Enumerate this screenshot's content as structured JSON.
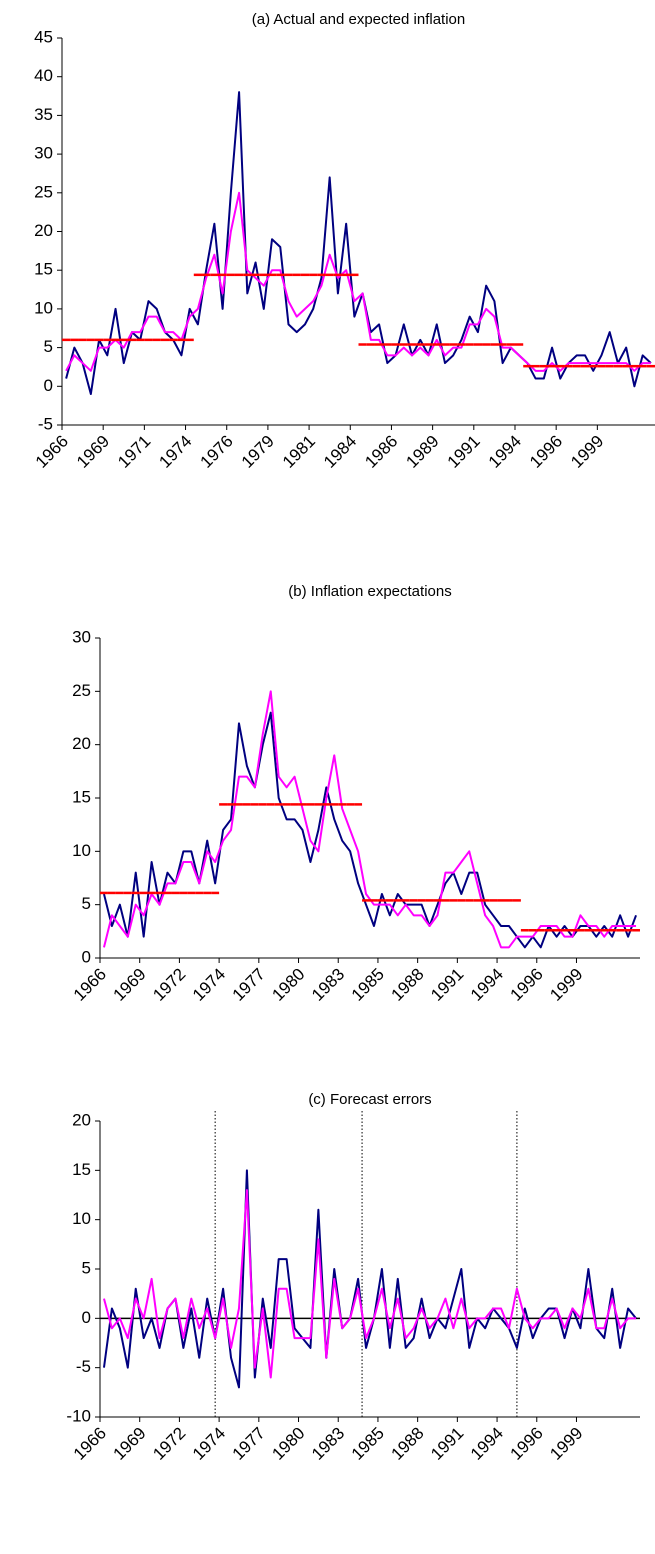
{
  "chart_data": [
    {
      "type": "line",
      "title": "(a) Actual and expected inflation",
      "categories": [
        "1966",
        null,
        null,
        null,
        null,
        "1969",
        null,
        null,
        null,
        null,
        "1971",
        null,
        null,
        null,
        null,
        "1974",
        null,
        null,
        null,
        null,
        "1976",
        null,
        null,
        null,
        null,
        "1979",
        null,
        null,
        null,
        null,
        "1981",
        null,
        null,
        null,
        null,
        "1984",
        null,
        null,
        null,
        null,
        "1986",
        null,
        null,
        null,
        null,
        "1989",
        null,
        null,
        null,
        null,
        "1991",
        null,
        null,
        null,
        null,
        "1994",
        null,
        null,
        null,
        null,
        "1996",
        null,
        null,
        null,
        null,
        "1999",
        null,
        null,
        null,
        null,
        null,
        null
      ],
      "ylim": [
        -5,
        45
      ],
      "yticks": [
        -5,
        0,
        5,
        10,
        15,
        20,
        25,
        30,
        35,
        40,
        45
      ],
      "series": [
        {
          "color": "#000080",
          "values": [
            1,
            5,
            3,
            -1,
            6,
            4,
            10,
            3,
            7,
            6,
            11,
            10,
            7,
            6,
            4,
            10,
            8,
            15,
            21,
            10,
            25,
            38,
            12,
            16,
            10,
            19,
            18,
            8,
            7,
            8,
            10,
            14,
            27,
            12,
            21,
            9,
            12,
            7,
            8,
            3,
            4,
            8,
            4,
            6,
            4,
            8,
            3,
            4,
            6,
            9,
            7,
            13,
            11,
            3,
            5,
            4,
            3,
            1,
            1,
            5,
            1,
            3,
            4,
            4,
            2,
            4,
            7,
            3,
            5,
            0,
            4,
            3
          ]
        },
        {
          "color": "#ff00ff",
          "values": [
            2,
            4,
            3,
            2,
            5,
            5,
            6,
            5,
            7,
            7,
            9,
            9,
            7,
            7,
            6,
            9,
            10,
            14,
            17,
            12,
            20,
            25,
            15,
            14,
            13,
            15,
            15,
            11,
            9,
            10,
            11,
            13,
            17,
            14,
            15,
            11,
            12,
            6,
            6,
            4,
            4,
            5,
            4,
            5,
            4,
            6,
            4,
            5,
            5,
            8,
            8,
            10,
            9,
            5,
            5,
            4,
            3,
            2,
            2,
            3,
            2,
            3,
            3,
            3,
            3,
            3,
            3,
            3,
            3,
            2,
            3,
            3
          ]
        },
        {
          "color": "#ff0000",
          "style": "step",
          "values": [
            6,
            6,
            6,
            6,
            6,
            6,
            6,
            6,
            6,
            6,
            6,
            6,
            6,
            6,
            6,
            6,
            14.4,
            14.4,
            14.4,
            14.4,
            14.4,
            14.4,
            14.4,
            14.4,
            14.4,
            14.4,
            14.4,
            14.4,
            14.4,
            14.4,
            14.4,
            14.4,
            14.4,
            14.4,
            14.4,
            14.4,
            5.4,
            5.4,
            5.4,
            5.4,
            5.4,
            5.4,
            5.4,
            5.4,
            5.4,
            5.4,
            5.4,
            5.4,
            5.4,
            5.4,
            5.4,
            5.4,
            5.4,
            5.4,
            5.4,
            5.4,
            2.6,
            2.6,
            2.6,
            2.6,
            2.6,
            2.6,
            2.6,
            2.6,
            2.6,
            2.6,
            2.6,
            2.6,
            2.6,
            2.6,
            2.6,
            2.6
          ]
        }
      ]
    },
    {
      "type": "line",
      "title": "(b) Inflation expectations",
      "categories": [
        "1966",
        null,
        null,
        null,
        null,
        "1969",
        null,
        null,
        null,
        null,
        "1972",
        null,
        null,
        null,
        null,
        "1974",
        null,
        null,
        null,
        null,
        "1977",
        null,
        null,
        null,
        null,
        "1980",
        null,
        null,
        null,
        null,
        "1983",
        null,
        null,
        null,
        null,
        "1985",
        null,
        null,
        null,
        null,
        "1988",
        null,
        null,
        null,
        null,
        "1991",
        null,
        null,
        null,
        null,
        "1994",
        null,
        null,
        null,
        null,
        "1996",
        null,
        null,
        null,
        null,
        "1999",
        null,
        null,
        null,
        null,
        null,
        null,
        null
      ],
      "ylim": [
        0,
        30
      ],
      "yticks": [
        0,
        5,
        10,
        15,
        20,
        25,
        30
      ],
      "series": [
        {
          "color": "#000080",
          "values": [
            6,
            3,
            5,
            2,
            8,
            2,
            9,
            5,
            8,
            7,
            10,
            10,
            7,
            11,
            7,
            12,
            13,
            22,
            18,
            16,
            20,
            23,
            15,
            13,
            13,
            12,
            9,
            12,
            16,
            13,
            11,
            10,
            7,
            5,
            3,
            6,
            4,
            6,
            5,
            5,
            5,
            3,
            5,
            7,
            8,
            6,
            8,
            8,
            5,
            4,
            3,
            3,
            2,
            1,
            2,
            1,
            3,
            2,
            3,
            2,
            3,
            3,
            2,
            3,
            2,
            4,
            2,
            4
          ]
        },
        {
          "color": "#ff00ff",
          "values": [
            1,
            4,
            3,
            2,
            5,
            4,
            6,
            5,
            7,
            7,
            9,
            9,
            7,
            10,
            9,
            11,
            12,
            17,
            17,
            16,
            21,
            25,
            17,
            16,
            17,
            14,
            11,
            10,
            15,
            19,
            14,
            12,
            10,
            6,
            5,
            5,
            5,
            4,
            5,
            4,
            4,
            3,
            4,
            8,
            8,
            9,
            10,
            7,
            4,
            3,
            1,
            1,
            2,
            2,
            2,
            3,
            3,
            3,
            2,
            2,
            4,
            3,
            3,
            2,
            3,
            3,
            3,
            3
          ]
        },
        {
          "color": "#ff0000",
          "style": "step",
          "values": [
            6.1,
            6.1,
            6.1,
            6.1,
            6.1,
            6.1,
            6.1,
            6.1,
            6.1,
            6.1,
            6.1,
            6.1,
            6.1,
            6.1,
            6.1,
            14.4,
            14.4,
            14.4,
            14.4,
            14.4,
            14.4,
            14.4,
            14.4,
            14.4,
            14.4,
            14.4,
            14.4,
            14.4,
            14.4,
            14.4,
            14.4,
            14.4,
            14.4,
            5.4,
            5.4,
            5.4,
            5.4,
            5.4,
            5.4,
            5.4,
            5.4,
            5.4,
            5.4,
            5.4,
            5.4,
            5.4,
            5.4,
            5.4,
            5.4,
            5.4,
            5.4,
            5.4,
            5.4,
            2.6,
            2.6,
            2.6,
            2.6,
            2.6,
            2.6,
            2.6,
            2.6,
            2.6,
            2.6,
            2.6,
            2.6,
            2.6,
            2.6,
            2.6
          ]
        }
      ]
    },
    {
      "type": "line",
      "title": "(c) Forecast errors",
      "categories": [
        "1966",
        null,
        null,
        null,
        null,
        "1969",
        null,
        null,
        null,
        null,
        "1972",
        null,
        null,
        null,
        null,
        "1974",
        null,
        null,
        null,
        null,
        "1977",
        null,
        null,
        null,
        null,
        "1980",
        null,
        null,
        null,
        null,
        "1983",
        null,
        null,
        null,
        null,
        "1985",
        null,
        null,
        null,
        null,
        "1988",
        null,
        null,
        null,
        null,
        "1991",
        null,
        null,
        null,
        null,
        "1994",
        null,
        null,
        null,
        null,
        "1996",
        null,
        null,
        null,
        null,
        "1999",
        null,
        null,
        null,
        null,
        null,
        null,
        null
      ],
      "ylim": [
        -10,
        20
      ],
      "yticks": [
        -10,
        -5,
        0,
        5,
        10,
        15,
        20
      ],
      "zero_line": true,
      "vlines": [
        14.5,
        33,
        52.5
      ],
      "series": [
        {
          "color": "#000080",
          "values": [
            -5,
            1,
            -1,
            -5,
            3,
            -2,
            0,
            -3,
            1,
            2,
            -3,
            1,
            -4,
            2,
            -2,
            3,
            -4,
            -7,
            15,
            -6,
            2,
            -3,
            6,
            6,
            -1,
            -2,
            -3,
            11,
            -4,
            5,
            -1,
            0,
            4,
            -3,
            0,
            5,
            -3,
            4,
            -3,
            -2,
            2,
            -2,
            0,
            -1,
            2,
            5,
            -3,
            0,
            -1,
            1,
            0,
            -1,
            -3,
            1,
            -2,
            0,
            1,
            1,
            -2,
            1,
            -1,
            5,
            -1,
            -2,
            3,
            -3,
            1,
            0
          ]
        },
        {
          "color": "#ff00ff",
          "values": [
            2,
            -1,
            0,
            -2,
            2,
            0,
            4,
            -2,
            1,
            2,
            -2,
            2,
            -1,
            1,
            -2,
            2,
            -3,
            1,
            13,
            -5,
            1,
            -6,
            3,
            3,
            -2,
            -2,
            -2,
            8,
            -4,
            4,
            -1,
            0,
            3,
            -2,
            0,
            3,
            -1,
            2,
            -2,
            -1,
            1,
            -1,
            0,
            2,
            -1,
            2,
            -1,
            0,
            0,
            1,
            1,
            -1,
            3,
            0,
            -1,
            0,
            0,
            1,
            -1,
            1,
            0,
            3,
            -1,
            -1,
            2,
            -1,
            0,
            0
          ]
        }
      ]
    }
  ]
}
